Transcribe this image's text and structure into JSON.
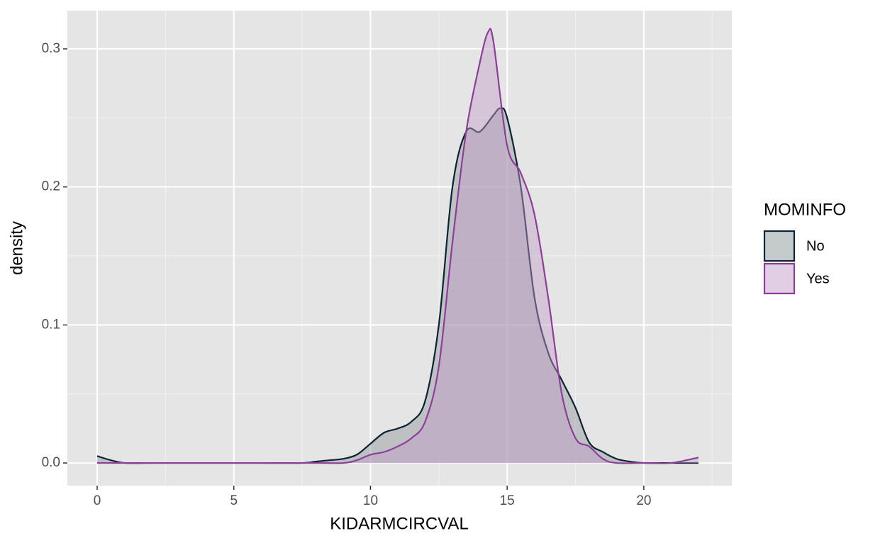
{
  "chart_data": {
    "type": "density",
    "x_label": "KIDARMCIRCVAL",
    "y_label": "density",
    "legend_title": "MOMINFO",
    "series": [
      {
        "name": "No",
        "color": "#0d2233",
        "fill": "#8c959c",
        "x": [
          0,
          0.5,
          1,
          2,
          4,
          6,
          7.5,
          8,
          8.5,
          9,
          9.5,
          10,
          10.5,
          11,
          11.5,
          12,
          12.5,
          13,
          13.5,
          14,
          14.5,
          14.75,
          15,
          15.5,
          16,
          16.5,
          17,
          17.5,
          18,
          18.5,
          19,
          19.5,
          20,
          21,
          22
        ],
        "values": [
          0.005,
          0.002,
          0,
          0,
          0,
          0,
          0,
          0.001,
          0.002,
          0.003,
          0.006,
          0.014,
          0.022,
          0.025,
          0.03,
          0.045,
          0.1,
          0.2,
          0.24,
          0.24,
          0.252,
          0.257,
          0.25,
          0.2,
          0.12,
          0.08,
          0.06,
          0.04,
          0.015,
          0.008,
          0.003,
          0.001,
          0,
          0,
          0
        ]
      },
      {
        "name": "Yes",
        "color": "#8b3f96",
        "fill": "#c39bc9",
        "x": [
          0,
          2,
          4,
          6,
          8,
          9,
          9.5,
          10,
          10.5,
          11,
          11.5,
          12,
          12.5,
          13,
          13.5,
          14,
          14.3,
          14.5,
          15,
          15.5,
          16,
          16.5,
          17,
          17.5,
          18,
          18.5,
          19,
          20,
          21,
          22
        ],
        "values": [
          0,
          0,
          0,
          0,
          0,
          0,
          0.002,
          0.006,
          0.008,
          0.012,
          0.018,
          0.03,
          0.07,
          0.16,
          0.24,
          0.29,
          0.312,
          0.305,
          0.23,
          0.21,
          0.18,
          0.12,
          0.05,
          0.018,
          0.012,
          0.003,
          0,
          0,
          0,
          0.004
        ]
      }
    ],
    "xlim": [
      -1.09,
      23.22
    ],
    "xticks": [
      0,
      5,
      10,
      15,
      20
    ],
    "x_minor_ticks": [
      2.5,
      7.5,
      12.5,
      17.5,
      22.5
    ],
    "ylim": [
      -0.0164,
      0.3277
    ],
    "yticks": [
      {
        "value": 0,
        "label": "0.0"
      },
      0.1,
      0.2,
      0.3
    ],
    "y_minor_ticks": [
      0.05,
      0.15,
      0.25
    ],
    "grid": true,
    "legend_position": "right"
  }
}
